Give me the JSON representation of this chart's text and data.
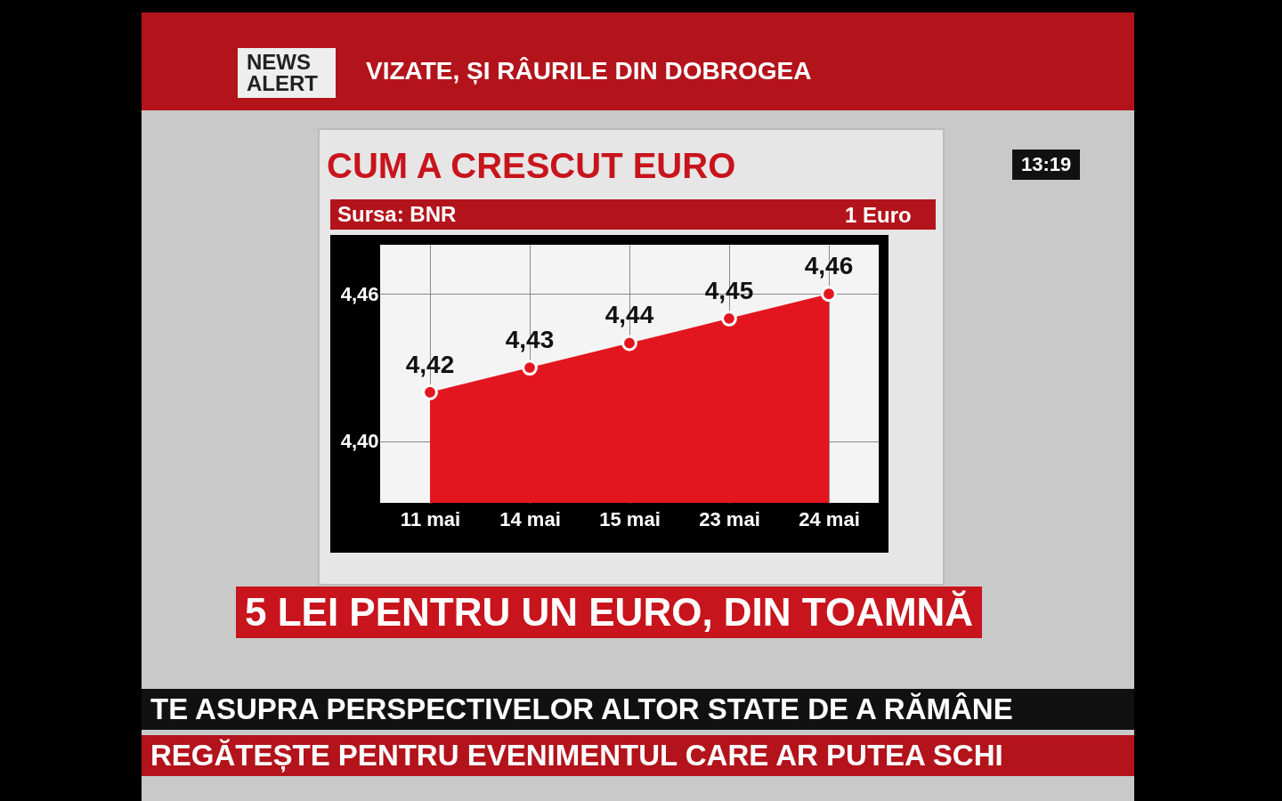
{
  "chart_data": {
    "type": "area",
    "title": "CUM A CRESCUT EURO",
    "subtitle": "Sursa: BNR",
    "categories": [
      "11 mai",
      "14 mai",
      "15 mai",
      "23 mai",
      "24 mai"
    ],
    "values": [
      4.42,
      4.43,
      4.44,
      4.45,
      4.46
    ],
    "value_labels": [
      "4,42",
      "4,43",
      "4,44",
      "4,45",
      "4,46"
    ],
    "color": "#e3161f",
    "ylim": [
      4.375,
      4.48
    ],
    "yticks": [
      {
        "value": 4.4,
        "label": "4,40"
      },
      {
        "value": 4.46,
        "label": "4,46"
      }
    ],
    "grid": true,
    "marker": "circle",
    "annotations": [
      "NEWS ALERT",
      "VIZATE, ȘI RÂURILE DIN DOBROGEA",
      "1 Euro",
      "5 LEI PENTRU UN EURO, DIN TOAMNĂ",
      "TE ASUPRA PERSPECTIVELOR ALTOR STATE DE A RĂMÂNE",
      "REGĂTEȘTE PENTRU EVENIMENTUL CARE AR PUTEA SCHI",
      "13:19"
    ]
  }
}
